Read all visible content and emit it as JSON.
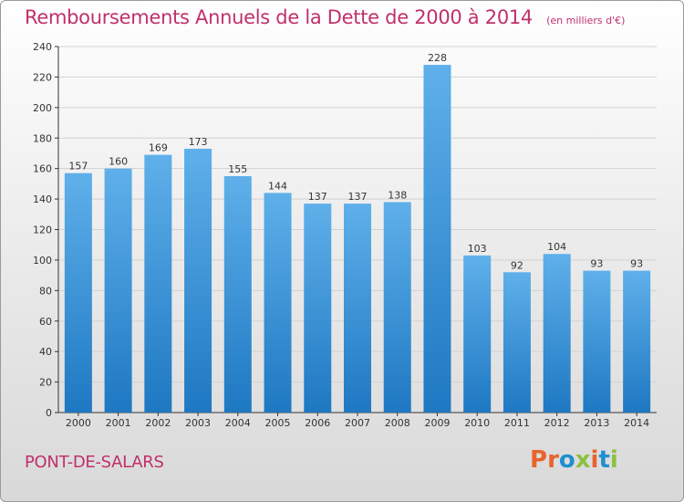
{
  "header": {
    "title": "Remboursements Annuels de la Dette de 2000 à 2014",
    "subtitle": "(en milliers d'€)"
  },
  "footer": {
    "location": "PONT-DE-SALARS",
    "logo_text": "Proxiti",
    "logo_colors": [
      "#e8642d",
      "#e8642d",
      "#1f8fd0",
      "#8cc13f",
      "#e8642d",
      "#1f8fd0",
      "#8cc13f"
    ]
  },
  "colors": {
    "bar_top": "#5fb0ea",
    "bar_bottom": "#1e78c2",
    "grid": "#d2d2d2",
    "axis": "#333333",
    "label": "#333333"
  },
  "chart_data": {
    "type": "bar",
    "title": "Remboursements Annuels de la Dette de 2000 à 2014",
    "subtitle": "(en milliers d'€)",
    "categories": [
      "2000",
      "2001",
      "2002",
      "2003",
      "2004",
      "2005",
      "2006",
      "2007",
      "2008",
      "2009",
      "2010",
      "2011",
      "2012",
      "2013",
      "2014"
    ],
    "values": [
      157,
      160,
      169,
      173,
      155,
      144,
      137,
      137,
      138,
      228,
      103,
      92,
      104,
      93,
      93
    ],
    "ylim": [
      0,
      240
    ],
    "yticks": [
      0,
      20,
      40,
      60,
      80,
      100,
      120,
      140,
      160,
      180,
      200,
      220,
      240
    ],
    "grid": true,
    "data_labels": true
  }
}
